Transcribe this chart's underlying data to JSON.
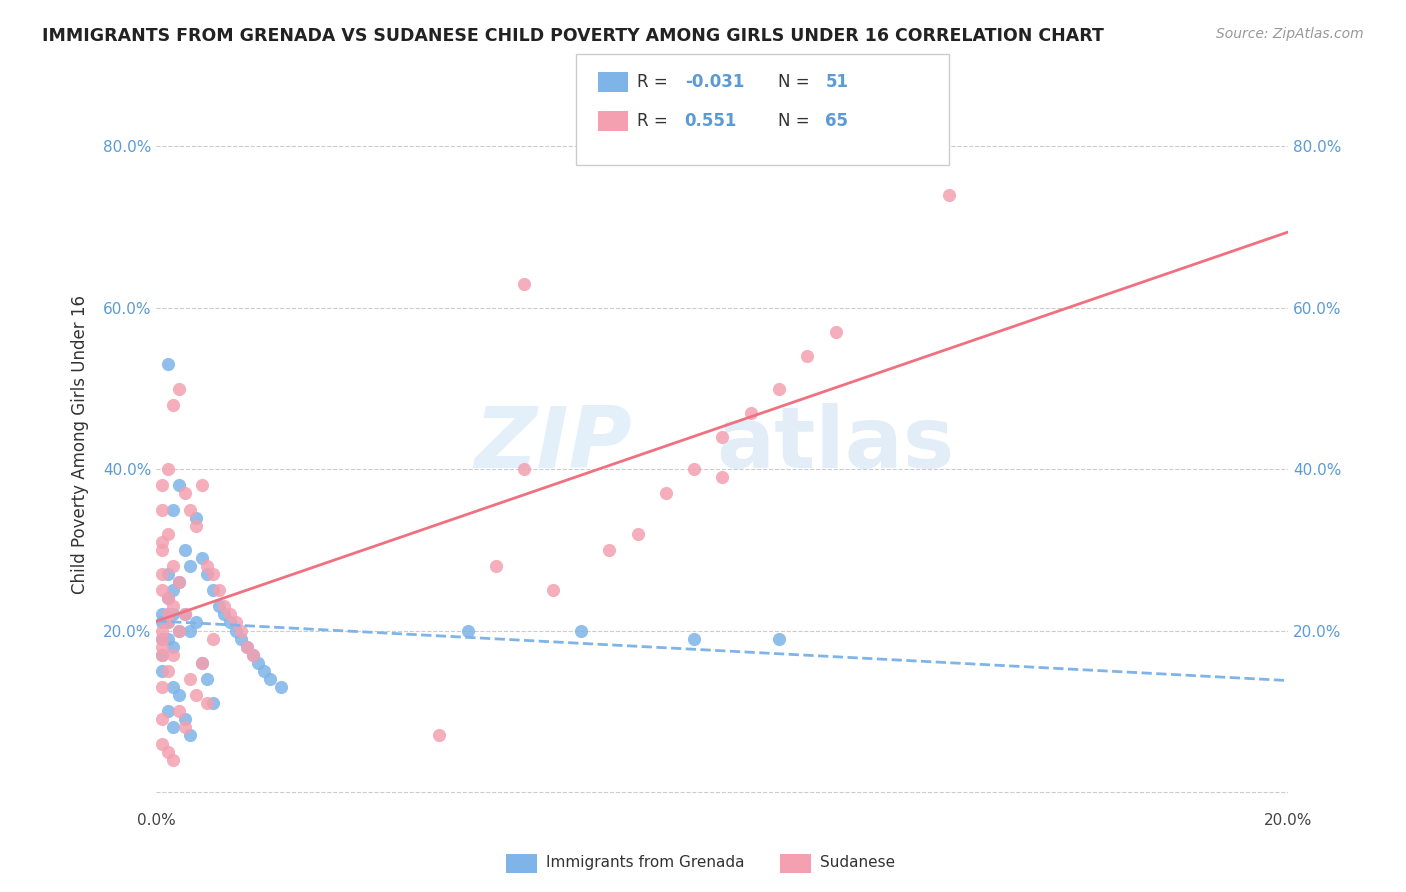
{
  "title": "IMMIGRANTS FROM GRENADA VS SUDANESE CHILD POVERTY AMONG GIRLS UNDER 16 CORRELATION CHART",
  "source": "Source: ZipAtlas.com",
  "ylabel": "Child Poverty Among Girls Under 16",
  "xlim": [
    0.0,
    0.2
  ],
  "ylim": [
    -0.02,
    0.88
  ],
  "yticks": [
    0.0,
    0.2,
    0.4,
    0.6,
    0.8
  ],
  "ytick_labels": [
    "",
    "20.0%",
    "40.0%",
    "60.0%",
    "80.0%"
  ],
  "xticks": [
    0.0,
    0.04,
    0.08,
    0.12,
    0.16,
    0.2
  ],
  "xtick_labels": [
    "0.0%",
    "",
    "",
    "",
    "",
    "20.0%"
  ],
  "grenada_color": "#7eb4e8",
  "sudanese_color": "#f4a0b0",
  "grenada_line_color": "#7eb4e8",
  "sudanese_line_color": "#f07080",
  "R_grenada": -0.031,
  "N_grenada": 51,
  "R_sudanese": 0.551,
  "N_sudanese": 65,
  "background_color": "#ffffff",
  "grenada_x": [
    0.001,
    0.001,
    0.001,
    0.001,
    0.001,
    0.002,
    0.002,
    0.002,
    0.002,
    0.002,
    0.002,
    0.002,
    0.003,
    0.003,
    0.003,
    0.003,
    0.003,
    0.003,
    0.004,
    0.004,
    0.004,
    0.004,
    0.005,
    0.005,
    0.005,
    0.006,
    0.006,
    0.006,
    0.007,
    0.007,
    0.008,
    0.008,
    0.009,
    0.009,
    0.01,
    0.01,
    0.011,
    0.012,
    0.013,
    0.014,
    0.015,
    0.016,
    0.017,
    0.018,
    0.019,
    0.02,
    0.022,
    0.055,
    0.075,
    0.095,
    0.11
  ],
  "grenada_y": [
    0.22,
    0.21,
    0.19,
    0.17,
    0.15,
    0.53,
    0.27,
    0.24,
    0.22,
    0.21,
    0.19,
    0.1,
    0.35,
    0.25,
    0.22,
    0.18,
    0.13,
    0.08,
    0.38,
    0.26,
    0.2,
    0.12,
    0.3,
    0.22,
    0.09,
    0.28,
    0.2,
    0.07,
    0.34,
    0.21,
    0.29,
    0.16,
    0.27,
    0.14,
    0.25,
    0.11,
    0.23,
    0.22,
    0.21,
    0.2,
    0.19,
    0.18,
    0.17,
    0.16,
    0.15,
    0.14,
    0.13,
    0.2,
    0.2,
    0.19,
    0.19
  ],
  "sudanese_x": [
    0.001,
    0.001,
    0.001,
    0.001,
    0.001,
    0.001,
    0.001,
    0.001,
    0.001,
    0.002,
    0.002,
    0.002,
    0.002,
    0.002,
    0.002,
    0.002,
    0.003,
    0.003,
    0.003,
    0.003,
    0.003,
    0.004,
    0.004,
    0.004,
    0.004,
    0.005,
    0.005,
    0.005,
    0.006,
    0.006,
    0.007,
    0.007,
    0.008,
    0.008,
    0.009,
    0.009,
    0.01,
    0.01,
    0.011,
    0.012,
    0.013,
    0.014,
    0.015,
    0.016,
    0.017,
    0.05,
    0.06,
    0.065,
    0.07,
    0.08,
    0.085,
    0.09,
    0.095,
    0.1,
    0.105,
    0.11,
    0.115,
    0.12,
    0.065,
    0.1,
    0.001,
    0.001,
    0.001,
    0.001,
    0.14
  ],
  "sudanese_y": [
    0.25,
    0.31,
    0.2,
    0.19,
    0.18,
    0.17,
    0.13,
    0.09,
    0.06,
    0.4,
    0.32,
    0.24,
    0.22,
    0.21,
    0.15,
    0.05,
    0.48,
    0.28,
    0.23,
    0.17,
    0.04,
    0.5,
    0.26,
    0.2,
    0.1,
    0.37,
    0.22,
    0.08,
    0.35,
    0.14,
    0.33,
    0.12,
    0.38,
    0.16,
    0.28,
    0.11,
    0.27,
    0.19,
    0.25,
    0.23,
    0.22,
    0.21,
    0.2,
    0.18,
    0.17,
    0.07,
    0.28,
    0.4,
    0.25,
    0.3,
    0.32,
    0.37,
    0.4,
    0.44,
    0.47,
    0.5,
    0.54,
    0.57,
    0.63,
    0.39,
    0.38,
    0.35,
    0.3,
    0.27,
    0.74
  ]
}
